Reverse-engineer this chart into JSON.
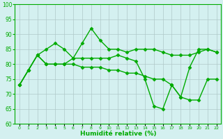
{
  "line1": [
    73,
    78,
    83,
    85,
    87,
    85,
    82,
    87,
    92,
    88,
    85,
    85,
    84,
    85,
    85,
    85,
    84,
    83,
    83,
    83,
    84,
    85,
    84
  ],
  "line2": [
    73,
    78,
    83,
    80,
    80,
    80,
    82,
    82,
    82,
    82,
    82,
    83,
    82,
    81,
    75,
    66,
    65,
    73,
    69,
    79,
    85,
    85,
    84
  ],
  "line3": [
    73,
    78,
    83,
    80,
    80,
    80,
    80,
    79,
    79,
    79,
    78,
    78,
    77,
    77,
    76,
    75,
    75,
    73,
    69,
    68,
    68,
    75,
    75
  ],
  "x": [
    0,
    1,
    2,
    3,
    4,
    5,
    6,
    7,
    8,
    9,
    10,
    11,
    12,
    13,
    14,
    15,
    16,
    17,
    18,
    19,
    20,
    21,
    22
  ],
  "xlabel": "Humidité relative (%)",
  "ylim": [
    60,
    100
  ],
  "yticks": [
    60,
    65,
    70,
    75,
    80,
    85,
    90,
    95,
    100
  ],
  "line_color": "#00aa00",
  "bg_color": "#d4f0f0",
  "grid_color": "#b0c8c8",
  "marker": "D",
  "marker_size": 2.5,
  "linewidth": 1.0
}
